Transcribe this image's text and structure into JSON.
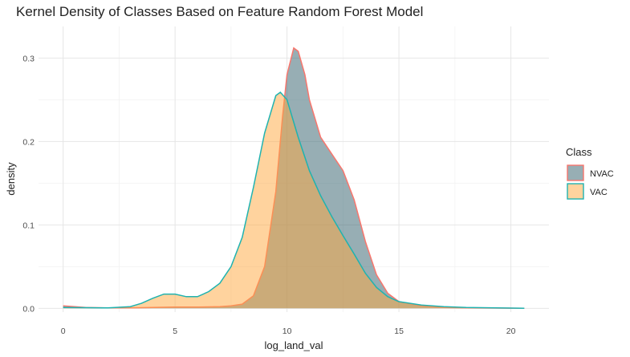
{
  "chart_data": {
    "type": "area",
    "title": "Kernel Density of Classes Based on Feature Random Forest Model",
    "xlabel": "log_land_val",
    "ylabel": "density",
    "xlim": [
      -1.1,
      21.7
    ],
    "ylim": [
      -0.0045,
      0.3378
    ],
    "x_ticks": [
      0,
      5,
      10,
      15,
      20
    ],
    "y_ticks": [
      0.0,
      0.1,
      0.2,
      0.3
    ],
    "x_tick_labels": [
      "0",
      "5",
      "10",
      "15",
      "20"
    ],
    "y_tick_labels": [
      "0.0",
      "0.1",
      "0.2",
      "0.3"
    ],
    "grid": true,
    "legend": {
      "title": "Class",
      "position": "right"
    },
    "series": [
      {
        "name": "NVAC",
        "fill": "#2F5E69",
        "fill_opacity": 0.5,
        "stroke": "#F8766D",
        "points": [
          [
            0.0,
            0.003
          ],
          [
            0.5,
            0.002
          ],
          [
            1.0,
            0.001
          ],
          [
            2.0,
            0.0005
          ],
          [
            3.0,
            0.0005
          ],
          [
            4.0,
            0.001
          ],
          [
            5.0,
            0.0015
          ],
          [
            6.0,
            0.0015
          ],
          [
            7.0,
            0.002
          ],
          [
            7.5,
            0.003
          ],
          [
            8.0,
            0.005
          ],
          [
            8.5,
            0.015
          ],
          [
            9.0,
            0.05
          ],
          [
            9.5,
            0.14
          ],
          [
            9.8,
            0.23
          ],
          [
            10.0,
            0.28
          ],
          [
            10.3,
            0.312
          ],
          [
            10.5,
            0.308
          ],
          [
            10.8,
            0.28
          ],
          [
            11.0,
            0.25
          ],
          [
            11.5,
            0.205
          ],
          [
            12.0,
            0.185
          ],
          [
            12.5,
            0.165
          ],
          [
            13.0,
            0.13
          ],
          [
            13.5,
            0.08
          ],
          [
            14.0,
            0.04
          ],
          [
            14.5,
            0.018
          ],
          [
            15.0,
            0.008
          ],
          [
            16.0,
            0.003
          ],
          [
            17.0,
            0.001
          ],
          [
            18.0,
            0.0005
          ],
          [
            20.6,
            0.0
          ]
        ]
      },
      {
        "name": "VAC",
        "fill": "#FFA83D",
        "fill_opacity": 0.5,
        "stroke": "#1FB3B0",
        "points": [
          [
            0.0,
            0.001
          ],
          [
            1.0,
            0.0008
          ],
          [
            2.0,
            0.0005
          ],
          [
            3.0,
            0.002
          ],
          [
            3.5,
            0.006
          ],
          [
            4.0,
            0.012
          ],
          [
            4.5,
            0.017
          ],
          [
            5.0,
            0.017
          ],
          [
            5.5,
            0.014
          ],
          [
            6.0,
            0.014
          ],
          [
            6.5,
            0.02
          ],
          [
            7.0,
            0.03
          ],
          [
            7.5,
            0.05
          ],
          [
            8.0,
            0.085
          ],
          [
            8.5,
            0.145
          ],
          [
            9.0,
            0.21
          ],
          [
            9.5,
            0.255
          ],
          [
            9.7,
            0.259
          ],
          [
            10.0,
            0.25
          ],
          [
            10.5,
            0.205
          ],
          [
            11.0,
            0.165
          ],
          [
            11.5,
            0.135
          ],
          [
            12.0,
            0.11
          ],
          [
            12.5,
            0.087
          ],
          [
            13.0,
            0.065
          ],
          [
            13.5,
            0.042
          ],
          [
            14.0,
            0.025
          ],
          [
            14.5,
            0.014
          ],
          [
            15.0,
            0.008
          ],
          [
            16.0,
            0.004
          ],
          [
            17.0,
            0.002
          ],
          [
            18.0,
            0.001
          ],
          [
            20.6,
            0.0
          ]
        ]
      }
    ]
  }
}
